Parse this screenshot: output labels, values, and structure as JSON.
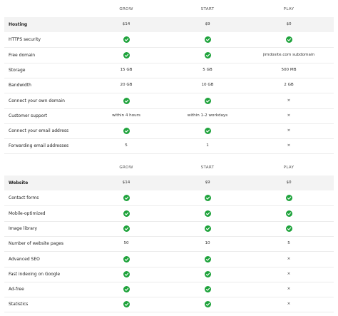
{
  "tables": [
    {
      "columns": [
        "GROW",
        "START",
        "PLAY"
      ],
      "rows": [
        {
          "label": "Hosting",
          "cells": [
            "$14",
            "$9",
            "$0"
          ]
        },
        {
          "label": "HTTPS security",
          "cells": [
            true,
            true,
            true
          ]
        },
        {
          "label": "Free domain",
          "cells": [
            true,
            true,
            "jimdosite.com subdomain"
          ]
        },
        {
          "label": "Storage",
          "cells": [
            "15 GB",
            "5 GB",
            "500 MB"
          ]
        },
        {
          "label": "Bandwidth",
          "cells": [
            "20 GB",
            "10 GB",
            "2 GB"
          ]
        },
        {
          "label": "Connect your own domain",
          "cells": [
            true,
            true,
            "×"
          ]
        },
        {
          "label": "Customer support",
          "cells": [
            "within 4 hours",
            "within 1-2 workdays",
            "×"
          ]
        },
        {
          "label": "Connect your email address",
          "cells": [
            true,
            true,
            "×"
          ]
        },
        {
          "label": "Forwarding email addresses",
          "cells": [
            5,
            1,
            "×"
          ]
        }
      ]
    },
    {
      "columns": [
        "GROW",
        "START",
        "PLAY"
      ],
      "rows": [
        {
          "label": "Website",
          "cells": [
            "$14",
            "$9",
            "$0"
          ]
        },
        {
          "label": "Contact forms",
          "cells": [
            true,
            true,
            true
          ]
        },
        {
          "label": "Mobile-optimized",
          "cells": [
            true,
            true,
            true
          ]
        },
        {
          "label": "Image library",
          "cells": [
            true,
            true,
            true
          ]
        },
        {
          "label": "Number of website pages",
          "cells": [
            50,
            10,
            5
          ]
        },
        {
          "label": "Advanced SEO",
          "cells": [
            true,
            true,
            "×"
          ]
        },
        {
          "label": "Fast indexing on Google",
          "cells": [
            true,
            true,
            "×"
          ]
        },
        {
          "label": "Ad-free",
          "cells": [
            true,
            true,
            "×"
          ]
        },
        {
          "label": "Statistics",
          "cells": [
            true,
            true,
            "×"
          ]
        }
      ]
    }
  ]
}
